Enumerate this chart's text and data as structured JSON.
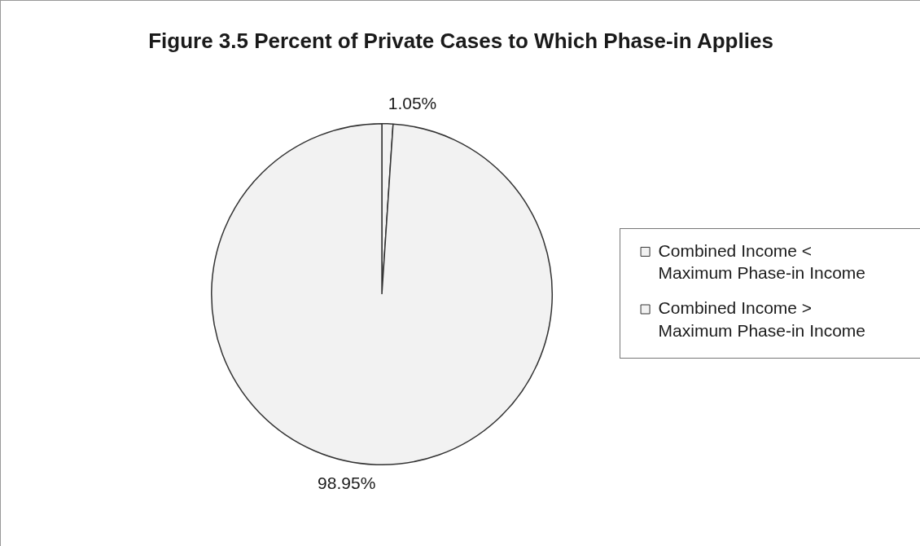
{
  "chart_data": {
    "type": "pie",
    "title": "Figure 3.5 Percent of Private Cases to Which Phase-in Applies",
    "categories": [
      "Combined Income < Maximum Phase-in Income",
      "Combined Income > Maximum Phase-in Income"
    ],
    "values": [
      1.05,
      98.95
    ],
    "colors": [
      "#f2f2f2",
      "#f2f2f2"
    ],
    "value_labels": [
      "1.05%",
      "98.95%"
    ],
    "legend": "right"
  }
}
